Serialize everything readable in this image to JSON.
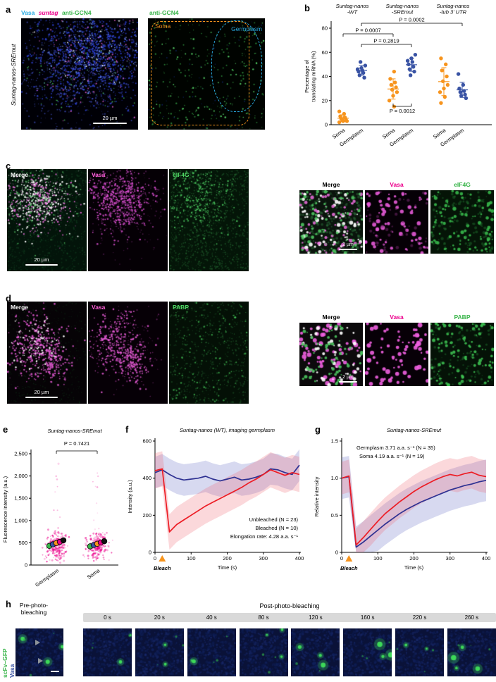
{
  "colors": {
    "cyan": "#29ABE2",
    "magenta": "#EC008C",
    "green": "#39B54A",
    "orange": "#F7941D",
    "blue": "#3953A4",
    "red": "#ED1C24",
    "navy": "#2E3192"
  },
  "panels": {
    "a": "a",
    "b": "b",
    "c": "c",
    "d": "d",
    "e": "e",
    "f": "f",
    "g": "g",
    "h": "h"
  },
  "panel_a": {
    "side_label": "Suntag-nanos-SREmut",
    "channels": [
      {
        "text": "Vasa"
      },
      {
        "text": "suntag"
      },
      {
        "text": "anti-GCN4"
      }
    ],
    "right_title": "anti-GCN4",
    "soma_label": "Soma",
    "germplasm_label": "Germplasm",
    "scalebar": "20 µm"
  },
  "panel_c": {
    "large_labels": [
      "Merge",
      "Vasa",
      "eIF4G"
    ],
    "zoom_labels": [
      "Merge",
      "Vasa",
      "eIF4G"
    ],
    "scalebar_large": "20 µm",
    "scalebar_zoom": "2 µm"
  },
  "panel_d": {
    "large_labels": [
      "Merge",
      "Vasa",
      "PABP"
    ],
    "zoom_labels": [
      "Merge",
      "Vasa",
      "PABP"
    ],
    "scalebar_large": "20 µm",
    "scalebar_zoom": "2 µm"
  },
  "panel_h": {
    "pre_label_lines": [
      "Pre-photo-",
      "bleaching"
    ],
    "post_label": "Post-photo-bleaching",
    "times": [
      "0 s",
      "20 s",
      "40 s",
      "80 s",
      "120 s",
      "160 s",
      "220 s",
      "260 s"
    ],
    "side_labels": [
      {
        "text": "scFv–GFP"
      },
      {
        "text": "Vasa"
      }
    ]
  },
  "chart_data": [
    {
      "id": "panel_b",
      "type": "scatter",
      "title_groups": [
        [
          "Suntag-nanos",
          "-WT"
        ],
        [
          "Suntag-nanos",
          "-SREmut"
        ],
        [
          "Suntag-nanos",
          "-tub 3' UTR"
        ]
      ],
      "ylabel_lines": [
        "Percentage of",
        "translating mRNA (%)"
      ],
      "ylim": [
        0,
        80
      ],
      "yticks": [
        0,
        20,
        40,
        60,
        80
      ],
      "categories": [
        "Soma",
        "Germplasm",
        "Soma",
        "Germplasm",
        "Soma",
        "Germplasm"
      ],
      "series": [
        {
          "group": "Suntag-nanos-WT",
          "cat": "Soma",
          "color": "#F7941D",
          "values": [
            2,
            3,
            3,
            4,
            4,
            5,
            6,
            7,
            9,
            11
          ],
          "mean": 5.4,
          "sd": 2.8
        },
        {
          "group": "Suntag-nanos-WT",
          "cat": "Germplasm",
          "color": "#3953A4",
          "values": [
            39,
            41,
            43,
            44,
            45,
            46,
            47,
            49,
            52
          ],
          "mean": 45,
          "sd": 4
        },
        {
          "group": "Suntag-nanos-SREmut",
          "cat": "Soma",
          "color": "#F7941D",
          "values": [
            15,
            20,
            24,
            27,
            29,
            31,
            33,
            35,
            38,
            44
          ],
          "mean": 29.6,
          "sd": 8.4
        },
        {
          "group": "Suntag-nanos-SREmut",
          "cat": "Germplasm",
          "color": "#3953A4",
          "values": [
            41,
            44,
            46,
            48,
            50,
            52,
            53,
            55,
            58
          ],
          "mean": 49.7,
          "sd": 5.4
        },
        {
          "group": "Suntag-nanos-tub 3' UTR",
          "cat": "Soma",
          "color": "#F7941D",
          "values": [
            18,
            23,
            27,
            30,
            33,
            36,
            40,
            45,
            50,
            55
          ],
          "mean": 35.7,
          "sd": 11.6
        },
        {
          "group": "Suntag-nanos-tub 3' UTR",
          "cat": "Germplasm",
          "color": "#3953A4",
          "values": [
            22,
            24,
            25,
            27,
            28,
            30,
            33,
            42
          ],
          "mean": 28.9,
          "sd": 6.3
        }
      ],
      "pvalues": [
        {
          "text": "P = 0.0002",
          "from": 1,
          "to": 5,
          "level": 0
        },
        {
          "text": "P = 0.0007",
          "from": 0,
          "to": 2,
          "level": 1
        },
        {
          "text": "P = 0.2819",
          "from": 1,
          "to": 3,
          "level": 2
        },
        {
          "text": "P = 0.0012",
          "from": 2,
          "to": 3,
          "position": "bottom"
        }
      ]
    },
    {
      "id": "panel_e",
      "type": "scatter",
      "title": "Suntag-nanos-SREmut",
      "p_text": "P = 0.7421",
      "ylabel": "Fluorescence intensity (a.u.)",
      "ylim": [
        0,
        2500
      ],
      "yticks": [
        {
          "v": 0,
          "t": "0"
        },
        {
          "v": 500,
          "t": "500"
        },
        {
          "v": 1000,
          "t": "1,000"
        },
        {
          "v": 1500,
          "t": "1,500"
        },
        {
          "v": 2000,
          "t": "2,000"
        },
        {
          "v": 2500,
          "t": "2,500"
        }
      ],
      "categories": [
        "Germplasm",
        "Soma"
      ],
      "cloud": {
        "color": "#EC008C",
        "n": 240,
        "mean": 430,
        "sd": 150
      },
      "replicate_dots": {
        "colors": [
          "#39B54A",
          "#3953A4",
          "#F7941D",
          "#EC008C",
          "#111111"
        ],
        "germplasm": [
          430,
          465,
          495,
          520,
          555
        ],
        "soma": [
          420,
          450,
          478,
          505,
          535
        ]
      }
    },
    {
      "id": "panel_f",
      "type": "line",
      "title": "Suntag-nanos (WT), imaging germplasm",
      "ylabel": "Intensity (a.u.)",
      "xlabel": "Time (s)",
      "xlim": [
        0,
        400
      ],
      "ylim": [
        0,
        600
      ],
      "xticks": [
        0,
        100,
        200,
        300,
        400
      ],
      "yticks": [
        0,
        200,
        400,
        600
      ],
      "bleach_x": 20,
      "bleach_label": "Bleach",
      "legend": [
        {
          "text": "Unbleached (N = 23)",
          "color": "#2E3192"
        },
        {
          "text": "Bleached (N = 10)",
          "color": "#ED1C24"
        },
        {
          "text": "Elongation rate: 4.28 a.a. s⁻¹",
          "color": "#000000"
        }
      ],
      "series": [
        {
          "name": "Unbleached",
          "color": "#2E3192",
          "fill": "rgba(110,120,200,0.28)",
          "band": 85,
          "x": [
            0,
            20,
            40,
            60,
            80,
            100,
            120,
            140,
            160,
            180,
            200,
            220,
            240,
            260,
            280,
            300,
            320,
            340,
            360,
            380,
            400
          ],
          "y": [
            430,
            445,
            420,
            400,
            390,
            395,
            400,
            410,
            395,
            385,
            395,
            405,
            390,
            395,
            405,
            420,
            450,
            445,
            430,
            420,
            470
          ]
        },
        {
          "name": "Bleached",
          "color": "#ED1C24",
          "fill": "rgba(240,100,110,0.25)",
          "band": 95,
          "x": [
            0,
            20,
            40,
            60,
            80,
            100,
            120,
            140,
            160,
            180,
            200,
            220,
            240,
            260,
            280,
            300,
            320,
            340,
            360,
            380,
            400
          ],
          "y": [
            440,
            450,
            110,
            150,
            175,
            200,
            225,
            250,
            270,
            290,
            310,
            330,
            350,
            375,
            395,
            420,
            445,
            430,
            415,
            430,
            420
          ]
        }
      ]
    },
    {
      "id": "panel_g",
      "type": "line",
      "title": "Suntag-nanos-SREmut",
      "ylabel": "Relative intensity",
      "xlabel": "Time (s)",
      "xlim": [
        0,
        400
      ],
      "ylim": [
        0,
        1.5
      ],
      "xticks": [
        0,
        100,
        200,
        300,
        400
      ],
      "yticks": [
        {
          "v": 0,
          "t": "0"
        },
        {
          "v": 0.5,
          "t": "0.5"
        },
        {
          "v": 1,
          "t": "1.0"
        },
        {
          "v": 1.5,
          "t": "1.5"
        }
      ],
      "bleach_x": 20,
      "bleach_label": "Bleach",
      "legend": [
        {
          "text": "Germplasm 3.71 a.a. s⁻¹ (N = 35)",
          "color": "#2E3192"
        },
        {
          "text": "Soma 4.19 a.a. s⁻¹ (N = 19)",
          "color": "#ED1C24"
        }
      ],
      "series": [
        {
          "name": "Germplasm",
          "color": "#2E3192",
          "fill": "rgba(110,120,200,0.28)",
          "band": 0.28,
          "x": [
            0,
            20,
            40,
            60,
            80,
            100,
            120,
            140,
            160,
            180,
            200,
            220,
            240,
            260,
            280,
            300,
            320,
            340,
            360,
            380,
            400
          ],
          "y": [
            1.0,
            1.02,
            0.07,
            0.14,
            0.22,
            0.3,
            0.38,
            0.45,
            0.52,
            0.58,
            0.63,
            0.68,
            0.72,
            0.76,
            0.8,
            0.84,
            0.87,
            0.9,
            0.92,
            0.95,
            0.97
          ]
        },
        {
          "name": "Soma",
          "color": "#ED1C24",
          "fill": "rgba(240,100,110,0.25)",
          "band": 0.22,
          "x": [
            0,
            20,
            40,
            60,
            80,
            100,
            120,
            140,
            160,
            180,
            200,
            220,
            240,
            260,
            280,
            300,
            320,
            340,
            360,
            380,
            400
          ],
          "y": [
            1.0,
            1.03,
            0.1,
            0.2,
            0.31,
            0.42,
            0.52,
            0.6,
            0.68,
            0.75,
            0.82,
            0.88,
            0.93,
            0.98,
            1.02,
            1.05,
            1.03,
            1.06,
            1.08,
            1.04,
            1.02
          ]
        }
      ]
    }
  ]
}
